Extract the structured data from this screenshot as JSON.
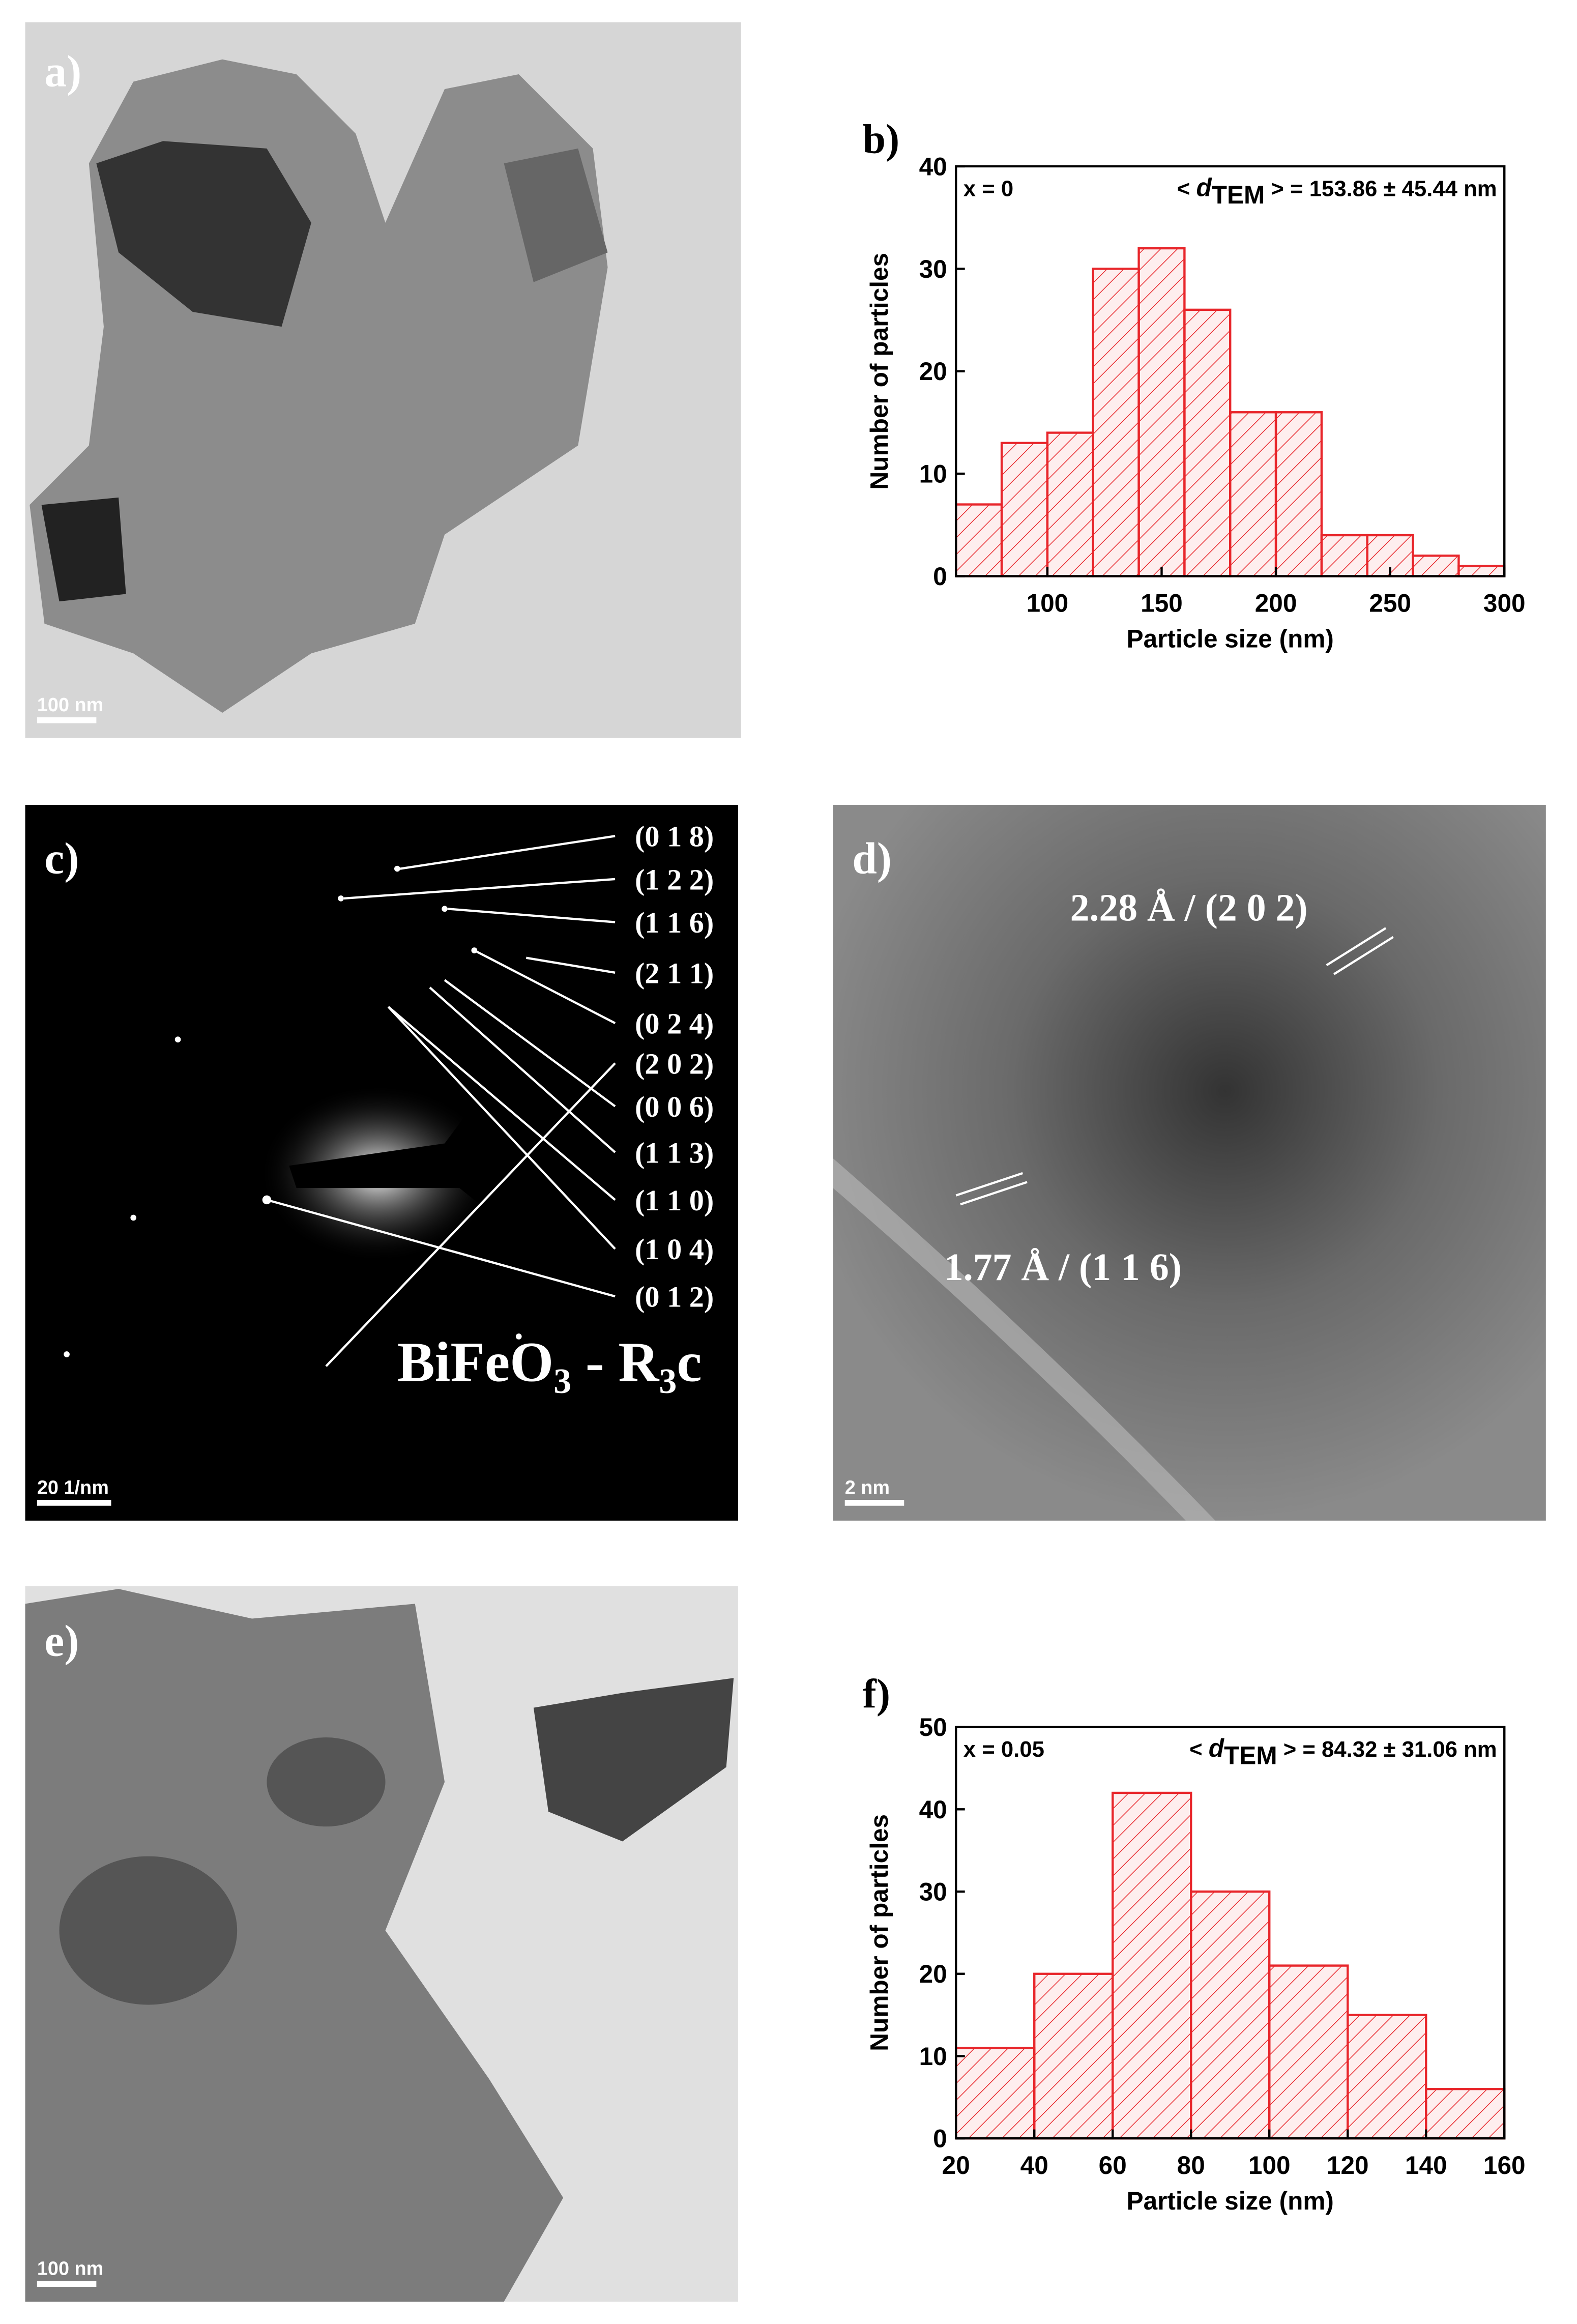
{
  "panels": {
    "a": {
      "label": "a)",
      "scale_bar": "100 nm"
    },
    "c": {
      "label": "c)",
      "scale_bar": "20 1/nm",
      "diffraction_labels": [
        "(0 1 8)",
        "(1 2 2)",
        "(1 1 6)",
        "(2 1 1)",
        "(0 2 4)",
        "(2 0 2)",
        "(0 0 6)",
        "(1 1 3)",
        "(1 1 0)",
        "(1 0 4)",
        "(0 1 2)"
      ],
      "phase_label_parts": [
        "BiFeO",
        "3",
        " - R",
        "3",
        "c"
      ]
    },
    "d": {
      "label": "d)",
      "scale_bar": "2 nm",
      "hrtem_labels": [
        "2.28 Å / (2 0 2)",
        "1.77 Å / (1 1 6)"
      ]
    },
    "e": {
      "label": "e)",
      "scale_bar": "100 nm"
    }
  },
  "chart_data": [
    {
      "type": "histogram",
      "panel_label": "b)",
      "annotation_left": "x = 0",
      "annotation_parts": [
        "< ",
        "d",
        "TEM",
        " > = 153.86 ± 45.44 nm"
      ],
      "x_label": "Particle size (nm)",
      "y_label": "Number of particles",
      "color": "#e8262b",
      "bins": [
        60,
        80,
        100,
        120,
        140,
        160,
        180,
        200,
        220,
        240,
        260,
        280,
        300
      ],
      "values": [
        7,
        13,
        14,
        30,
        32,
        26,
        16,
        16,
        4,
        4,
        2,
        1
      ],
      "xlim": [
        60,
        300
      ],
      "xticks": [
        100,
        150,
        200,
        250,
        300
      ],
      "ylim": [
        0,
        40
      ],
      "yticks": [
        0,
        10,
        20,
        30,
        40
      ]
    },
    {
      "type": "histogram",
      "panel_label": "f)",
      "annotation_left": "x = 0.05",
      "annotation_parts": [
        "< ",
        "d",
        "TEM",
        " > = 84.32 ± 31.06 nm"
      ],
      "x_label": "Particle size (nm)",
      "y_label": "Number of particles",
      "color": "#e8262b",
      "bins": [
        20,
        40,
        60,
        80,
        100,
        120,
        140,
        160
      ],
      "values": [
        11,
        20,
        42,
        30,
        21,
        15,
        6
      ],
      "xlim": [
        20,
        160
      ],
      "xticks": [
        20,
        40,
        60,
        80,
        100,
        120,
        140,
        160
      ],
      "ylim": [
        0,
        50
      ],
      "yticks": [
        0,
        10,
        20,
        30,
        40,
        50
      ]
    }
  ]
}
